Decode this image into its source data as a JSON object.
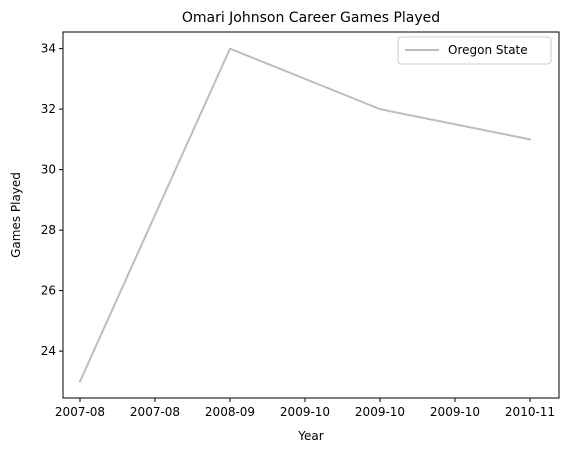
{
  "chart_data": {
    "type": "line",
    "title": "Omari Johnson Career Games Played",
    "xlabel": "Year",
    "ylabel": "Games Played",
    "x": [
      "2007-08",
      "2008-09",
      "2009-10",
      "2010-11"
    ],
    "x_ticks": [
      "2007-08",
      "2007-08",
      "2008-09",
      "2009-10",
      "2009-10",
      "2009-10",
      "2010-11"
    ],
    "series": [
      {
        "name": "Oregon State",
        "values": [
          23,
          34,
          32,
          31
        ],
        "color": "#bdbdbd"
      }
    ],
    "ylim": [
      22.45,
      34.55
    ],
    "y_ticks": [
      24,
      26,
      28,
      30,
      32,
      34
    ],
    "grid": false,
    "legend_position": "top-right"
  }
}
